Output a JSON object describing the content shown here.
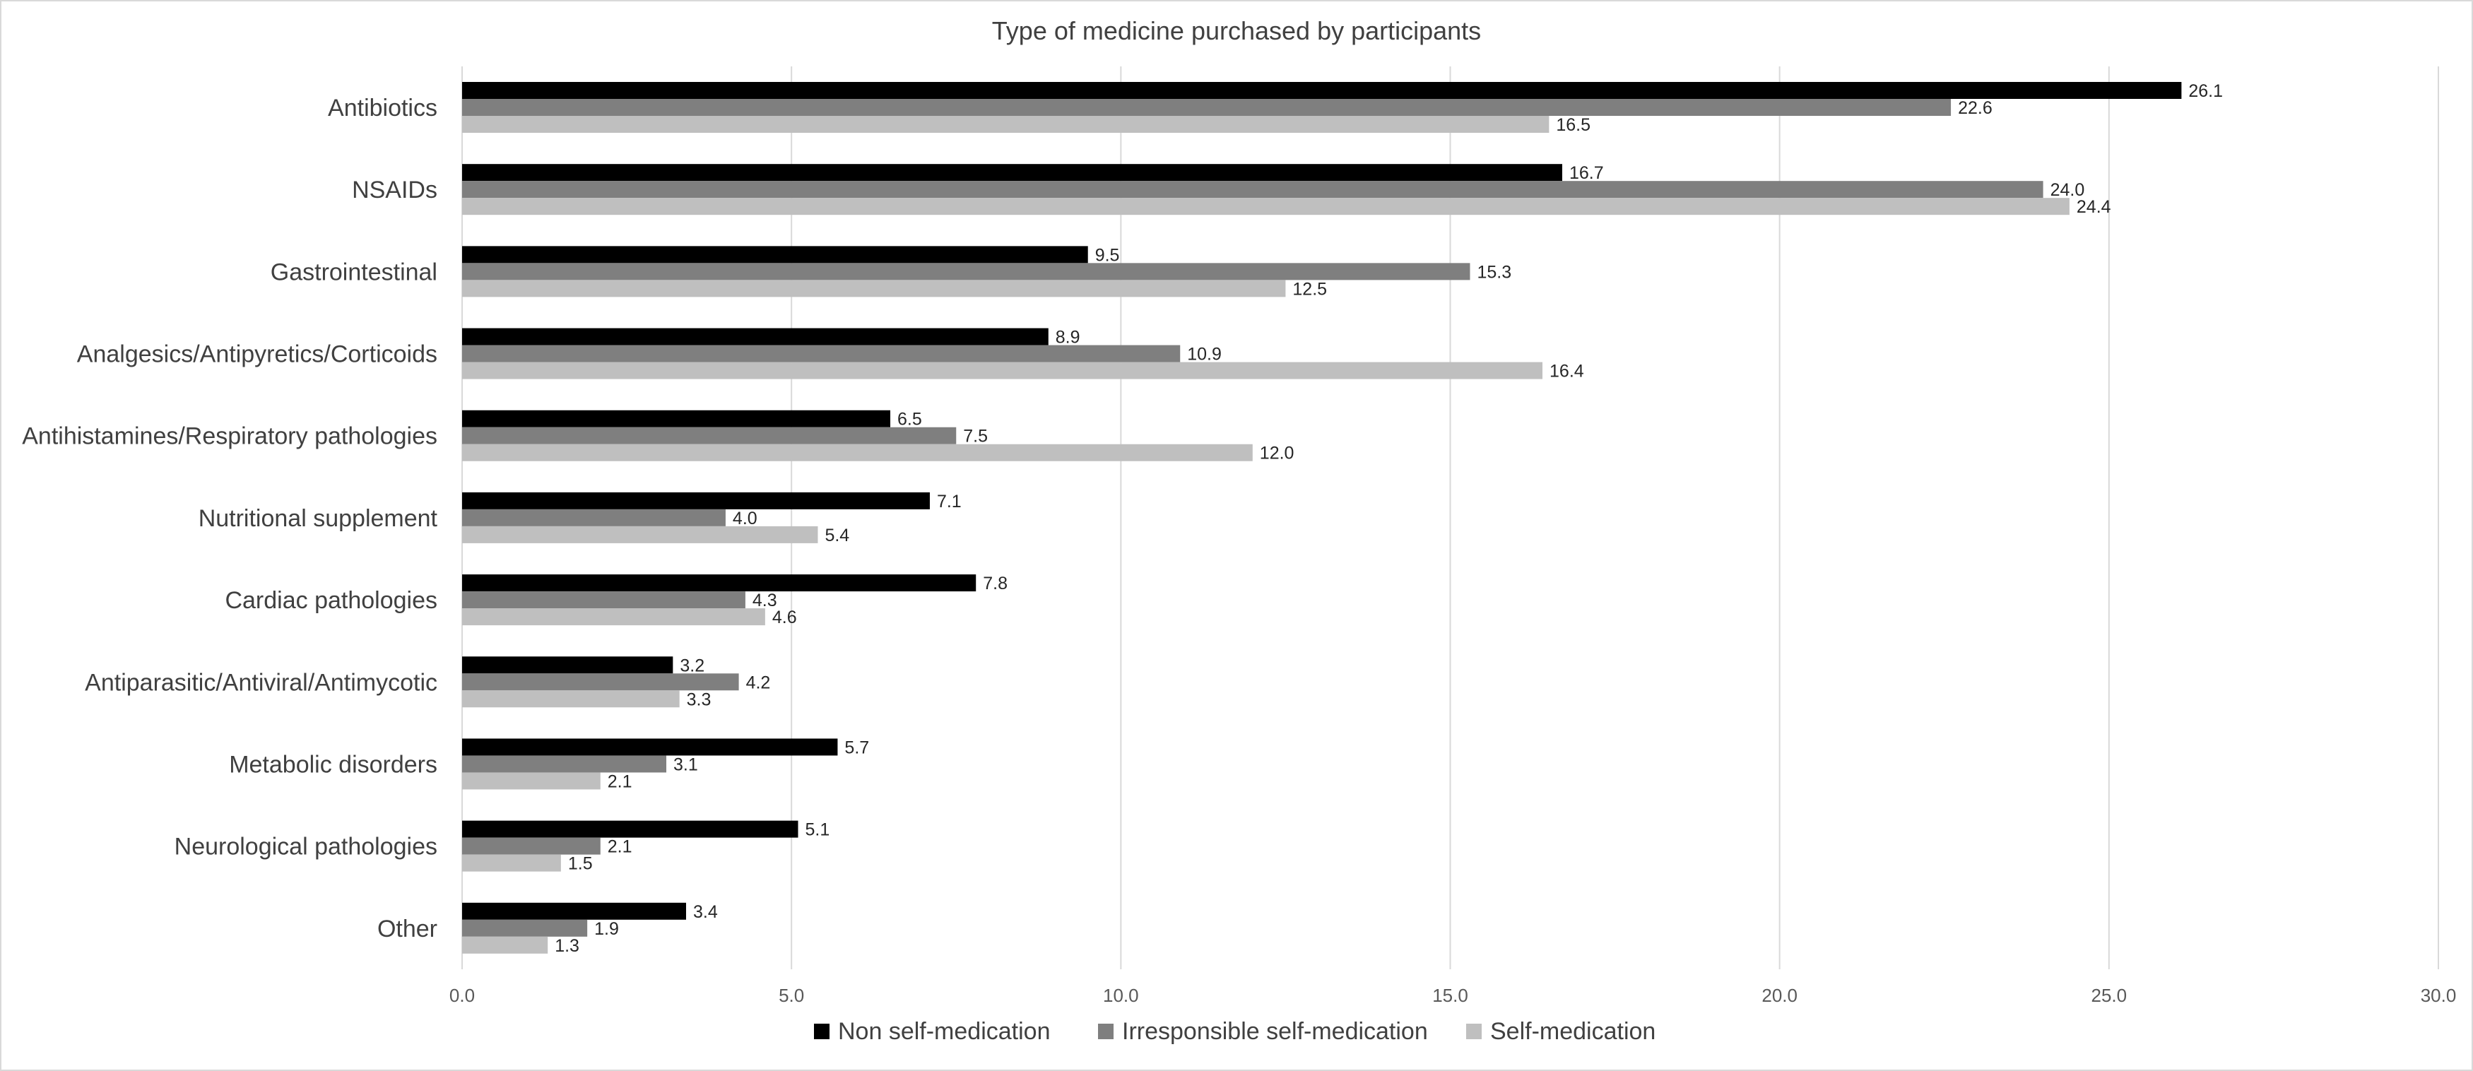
{
  "chart_data": {
    "type": "bar",
    "orientation": "horizontal",
    "title": "Type of medicine purchased by participants",
    "categories": [
      "Antibiotics",
      "NSAIDs",
      "Gastrointestinal",
      "Analgesics/Antipyretics/Corticoids",
      "Antihistamines/Respiratory pathologies",
      "Nutritional supplement",
      "Cardiac pathologies",
      "Antiparasitic/Antiviral/Antimycotic",
      "Metabolic disorders",
      "Neurological pathologies",
      "Other"
    ],
    "series": [
      {
        "name": "Non self-medication",
        "color": "#000000",
        "values": [
          26.1,
          16.7,
          9.5,
          8.9,
          6.5,
          7.1,
          7.8,
          3.2,
          5.7,
          5.1,
          3.4
        ],
        "labels": [
          "26.1",
          "16.7",
          "9.5",
          "8.9",
          "6.5",
          "7.1",
          "7.8",
          "3.2",
          "5.7",
          "5.1",
          "3.4"
        ]
      },
      {
        "name": "Irresponsible self-medication",
        "color": "#7f7f7f",
        "values": [
          22.6,
          24.0,
          15.3,
          10.9,
          7.5,
          4.0,
          4.3,
          4.2,
          3.1,
          2.1,
          1.9
        ],
        "labels": [
          "22.6",
          "24.0",
          "15.3",
          "10.9",
          "7.5",
          "4.0",
          "4.3",
          "4.2",
          "3.1",
          "2.1",
          "1.9"
        ]
      },
      {
        "name": "Self-medication",
        "color": "#bfbfbf",
        "values": [
          16.5,
          24.4,
          12.5,
          16.4,
          12.0,
          5.4,
          4.6,
          3.3,
          2.1,
          1.5,
          1.3
        ],
        "labels": [
          "16.5",
          "24.4",
          "12.5",
          "16.4",
          "12.0",
          "5.4",
          "4.6",
          "3.3",
          "2.1",
          "1.5",
          "1.3"
        ]
      }
    ],
    "xlim": [
      0,
      30
    ],
    "xticks": [
      "0.0",
      "5.0",
      "10.0",
      "15.0",
      "20.0",
      "25.0",
      "30.0"
    ],
    "xtick_values": [
      0,
      5,
      10,
      15,
      20,
      25,
      30
    ],
    "grid": "vertical",
    "legend": "bottom-center"
  }
}
